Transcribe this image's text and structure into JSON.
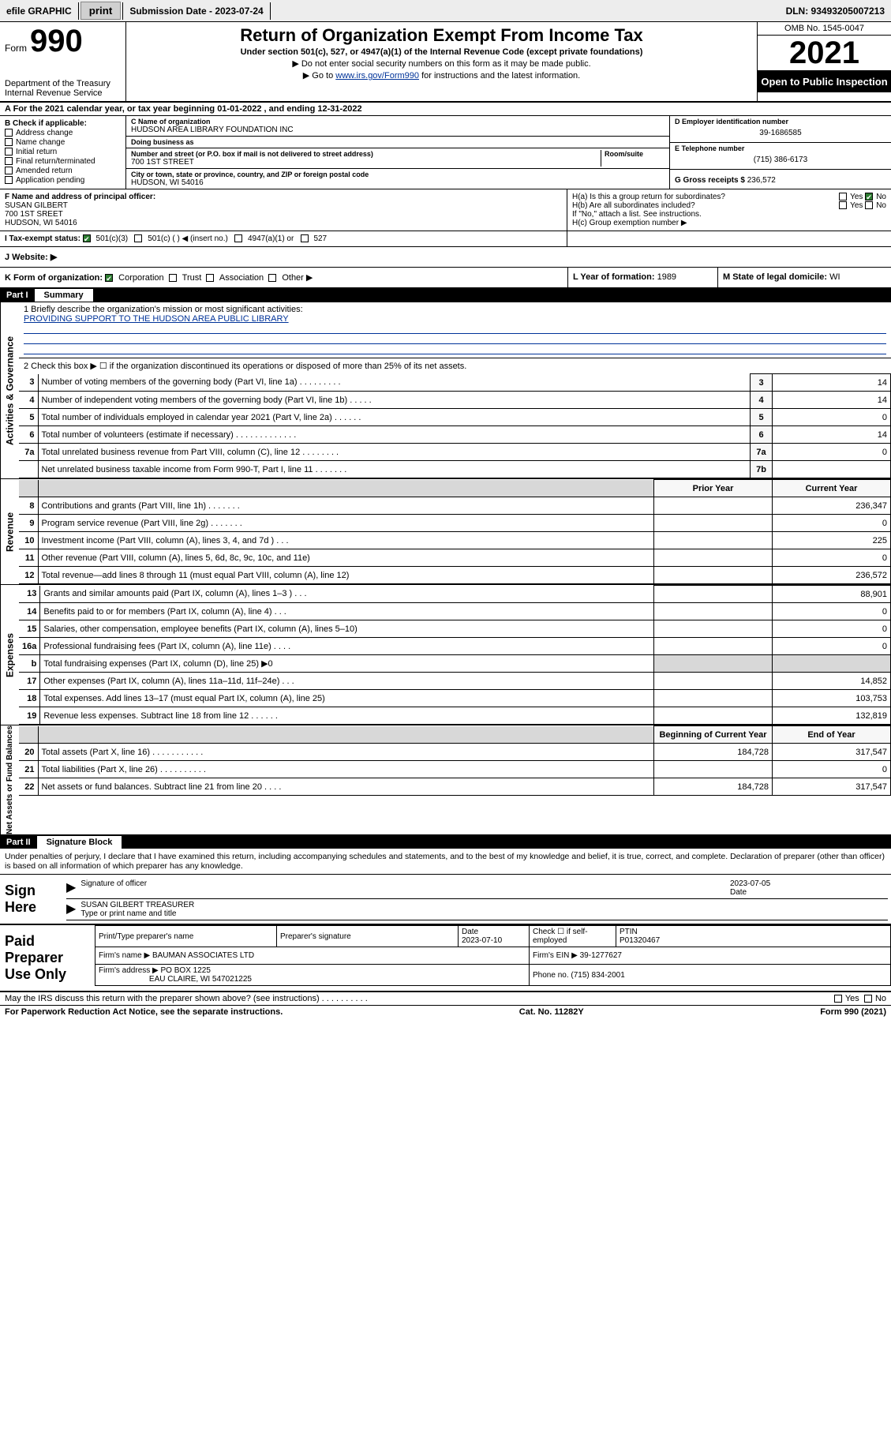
{
  "topbar": {
    "efile": "efile GRAPHIC",
    "print": "print",
    "subdate_label": "Submission Date - 2023-07-24",
    "dln": "DLN: 93493205007213"
  },
  "header": {
    "form_word": "Form",
    "form_num": "990",
    "title": "Return of Organization Exempt From Income Tax",
    "sub": "Under section 501(c), 527, or 4947(a)(1) of the Internal Revenue Code (except private foundations)",
    "note1": "▶ Do not enter social security numbers on this form as it may be made public.",
    "note2_pre": "▶ Go to ",
    "note2_link": "www.irs.gov/Form990",
    "note2_post": " for instructions and the latest information.",
    "dept": "Department of the Treasury",
    "irs": "Internal Revenue Service",
    "omb": "OMB No. 1545-0047",
    "year": "2021",
    "openpub": "Open to Public Inspection"
  },
  "lineA": "A  For the 2021 calendar year, or tax year beginning 01-01-2022   , and ending 12-31-2022",
  "boxB": {
    "hdr": "B Check if applicable:",
    "items": [
      "Address change",
      "Name change",
      "Initial return",
      "Final return/terminated",
      "Amended return",
      "Application pending"
    ]
  },
  "boxC": {
    "name_lbl": "C Name of organization",
    "name": "HUDSON AREA LIBRARY FOUNDATION INC",
    "dba_lbl": "Doing business as",
    "dba": "",
    "addr_lbl": "Number and street (or P.O. box if mail is not delivered to street address)",
    "room_lbl": "Room/suite",
    "addr": "700 1ST STREET",
    "city_lbl": "City or town, state or province, country, and ZIP or foreign postal code",
    "city": "HUDSON, WI  54016"
  },
  "boxD": {
    "lbl": "D Employer identification number",
    "val": "39-1686585"
  },
  "boxE": {
    "lbl": "E Telephone number",
    "val": "(715) 386-6173"
  },
  "boxG": {
    "lbl": "G Gross receipts $",
    "val": "236,572"
  },
  "officer": {
    "lbl": "F Name and address of principal officer:",
    "name": "SUSAN GILBERT",
    "addr1": "700 1ST SREET",
    "addr2": "HUDSON, WI  54016"
  },
  "ha": {
    "a": "H(a)  Is this a group return for subordinates?",
    "b": "H(b)  Are all subordinates included?",
    "note": "If \"No,\" attach a list. See instructions.",
    "c": "H(c)  Group exemption number ▶",
    "yes": "Yes",
    "no": "No"
  },
  "taxex": {
    "lbl": "I   Tax-exempt status:",
    "o1": "501(c)(3)",
    "o2": "501(c) (  ) ◀ (insert no.)",
    "o3": "4947(a)(1) or",
    "o4": "527"
  },
  "website": {
    "lbl": "J   Website: ▶"
  },
  "korg": {
    "lbl": "K Form of organization:",
    "o1": "Corporation",
    "o2": "Trust",
    "o3": "Association",
    "o4": "Other ▶"
  },
  "ly": {
    "lbl": "L Year of formation:",
    "val": "1989"
  },
  "ms": {
    "lbl": "M State of legal domicile:",
    "val": "WI"
  },
  "part1": {
    "label": "Part I",
    "title": "Summary"
  },
  "mission": {
    "q": "1   Briefly describe the organization's mission or most significant activities:",
    "a": "PROVIDING SUPPORT TO THE HUDSON AREA PUBLIC LIBRARY"
  },
  "gov_lines": {
    "l2": "2   Check this box ▶ ☐  if the organization discontinued its operations or disposed of more than 25% of its net assets.",
    "rows": [
      {
        "n": "3",
        "t": "Number of voting members of the governing body (Part VI, line 1a)  .   .   .   .   .   .   .   .   .",
        "ln": "3",
        "v": "14"
      },
      {
        "n": "4",
        "t": "Number of independent voting members of the governing body (Part VI, line 1b)  .   .   .   .   .",
        "ln": "4",
        "v": "14"
      },
      {
        "n": "5",
        "t": "Total number of individuals employed in calendar year 2021 (Part V, line 2a)  .   .   .   .   .   .",
        "ln": "5",
        "v": "0"
      },
      {
        "n": "6",
        "t": "Total number of volunteers (estimate if necessary)  .   .   .   .   .   .   .   .   .   .   .   .   .",
        "ln": "6",
        "v": "14"
      },
      {
        "n": "7a",
        "t": "Total unrelated business revenue from Part VIII, column (C), line 12  .   .   .   .   .   .   .   .",
        "ln": "7a",
        "v": "0"
      },
      {
        "n": "",
        "t": "Net unrelated business taxable income from Form 990-T, Part I, line 11  .   .   .   .   .   .   .",
        "ln": "7b",
        "v": ""
      }
    ]
  },
  "rev": {
    "hdr_prior": "Prior Year",
    "hdr_curr": "Current Year",
    "rows": [
      {
        "n": "8",
        "t": "Contributions and grants (Part VIII, line 1h)  .   .   .   .   .   .   .",
        "p": "",
        "c": "236,347"
      },
      {
        "n": "9",
        "t": "Program service revenue (Part VIII, line 2g)  .   .   .   .   .   .   .",
        "p": "",
        "c": "0"
      },
      {
        "n": "10",
        "t": "Investment income (Part VIII, column (A), lines 3, 4, and 7d )  .   .   .",
        "p": "",
        "c": "225"
      },
      {
        "n": "11",
        "t": "Other revenue (Part VIII, column (A), lines 5, 6d, 8c, 9c, 10c, and 11e)",
        "p": "",
        "c": "0"
      },
      {
        "n": "12",
        "t": "Total revenue—add lines 8 through 11 (must equal Part VIII, column (A), line 12)",
        "p": "",
        "c": "236,572"
      }
    ]
  },
  "exp": {
    "rows": [
      {
        "n": "13",
        "t": "Grants and similar amounts paid (Part IX, column (A), lines 1–3 )  .   .   .",
        "p": "",
        "c": "88,901"
      },
      {
        "n": "14",
        "t": "Benefits paid to or for members (Part IX, column (A), line 4)  .   .   .",
        "p": "",
        "c": "0"
      },
      {
        "n": "15",
        "t": "Salaries, other compensation, employee benefits (Part IX, column (A), lines 5–10)",
        "p": "",
        "c": "0"
      },
      {
        "n": "16a",
        "t": "Professional fundraising fees (Part IX, column (A), line 11e)  .   .   .   .",
        "p": "",
        "c": "0"
      },
      {
        "n": "b",
        "t": "Total fundraising expenses (Part IX, column (D), line 25) ▶0",
        "p": "shade",
        "c": "shade"
      },
      {
        "n": "17",
        "t": "Other expenses (Part IX, column (A), lines 11a–11d, 11f–24e)  .   .   .",
        "p": "",
        "c": "14,852"
      },
      {
        "n": "18",
        "t": "Total expenses. Add lines 13–17 (must equal Part IX, column (A), line 25)",
        "p": "",
        "c": "103,753"
      },
      {
        "n": "19",
        "t": "Revenue less expenses. Subtract line 18 from line 12  .   .   .   .   .   .",
        "p": "",
        "c": "132,819"
      }
    ]
  },
  "net": {
    "hdr_beg": "Beginning of Current Year",
    "hdr_end": "End of Year",
    "rows": [
      {
        "n": "20",
        "t": "Total assets (Part X, line 16)  .   .   .   .   .   .   .   .   .   .   .",
        "p": "184,728",
        "c": "317,547"
      },
      {
        "n": "21",
        "t": "Total liabilities (Part X, line 26)  .   .   .   .   .   .   .   .   .   .",
        "p": "",
        "c": "0"
      },
      {
        "n": "22",
        "t": "Net assets or fund balances. Subtract line 21 from line 20  .   .   .   .",
        "p": "184,728",
        "c": "317,547"
      }
    ]
  },
  "part2": {
    "label": "Part II",
    "title": "Signature Block"
  },
  "declar": "Under penalties of perjury, I declare that I have examined this return, including accompanying schedules and statements, and to the best of my knowledge and belief, it is true, correct, and complete. Declaration of preparer (other than officer) is based on all information of which preparer has any knowledge.",
  "sign": {
    "here": "Sign Here",
    "sig_lbl": "Signature of officer",
    "date_lbl": "Date",
    "date": "2023-07-05",
    "name": "SUSAN GILBERT TREASURER",
    "name_lbl": "Type or print name and title"
  },
  "paid": {
    "label": "Paid Preparer Use Only",
    "h1": "Print/Type preparer's name",
    "h2": "Preparer's signature",
    "h3": "Date",
    "h4": "Check ☐ if self-employed",
    "h5": "PTIN",
    "date": "2023-07-10",
    "ptin": "P01320467",
    "firm_lbl": "Firm's name    ▶",
    "firm": "BAUMAN ASSOCIATES LTD",
    "ein_lbl": "Firm's EIN ▶",
    "ein": "39-1277627",
    "addr_lbl": "Firm's address ▶",
    "addr1": "PO BOX 1225",
    "addr2": "EAU CLAIRE, WI  547021225",
    "phone_lbl": "Phone no.",
    "phone": "(715) 834-2001"
  },
  "discuss": "May the IRS discuss this return with the preparer shown above? (see instructions)  .   .   .   .   .   .   .   .   .   .",
  "footer": {
    "pra": "For Paperwork Reduction Act Notice, see the separate instructions.",
    "cat": "Cat. No. 11282Y",
    "form": "Form 990 (2021)"
  },
  "vtabs": {
    "gov": "Activities & Governance",
    "rev": "Revenue",
    "exp": "Expenses",
    "net": "Net Assets or Fund Balances"
  }
}
